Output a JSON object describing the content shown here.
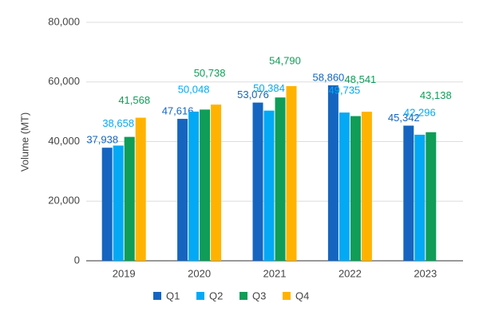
{
  "chart_data": {
    "type": "bar",
    "y_label": "Volume (MT)",
    "categories": [
      "2019",
      "2020",
      "2021",
      "2022",
      "2023"
    ],
    "series": [
      {
        "name": "Q1",
        "color": "#1565c0",
        "values": [
          37938,
          47616,
          53076,
          58860,
          45342
        ],
        "value_labels": [
          "37,938",
          "47,616",
          "53,076",
          "58,860",
          "45,342"
        ]
      },
      {
        "name": "Q2",
        "color": "#03a9f4",
        "values": [
          38658,
          50048,
          50384,
          49735,
          42296
        ],
        "value_labels": [
          "38,658",
          "50,048",
          "50,384",
          "49,735",
          "42,296"
        ]
      },
      {
        "name": "Q3",
        "color": "#0f9d58",
        "values": [
          41568,
          50738,
          54790,
          48541,
          43138
        ],
        "value_labels": [
          "41,568",
          "50,738",
          "54,790",
          "48,541",
          "43,138"
        ]
      },
      {
        "name": "Q4",
        "color": "#ffb300",
        "values": [
          48000,
          52400,
          58600,
          50000,
          null
        ]
      }
    ],
    "ylim": [
      0,
      80000
    ],
    "yticks": [
      0,
      {
        "value": 20000,
        "label": "20,000"
      },
      {
        "value": 40000,
        "label": "40,000"
      },
      {
        "value": 60000,
        "label": "60,000"
      },
      {
        "value": 80000,
        "label": "80,000"
      }
    ],
    "grid": true,
    "legend": "bottom"
  }
}
